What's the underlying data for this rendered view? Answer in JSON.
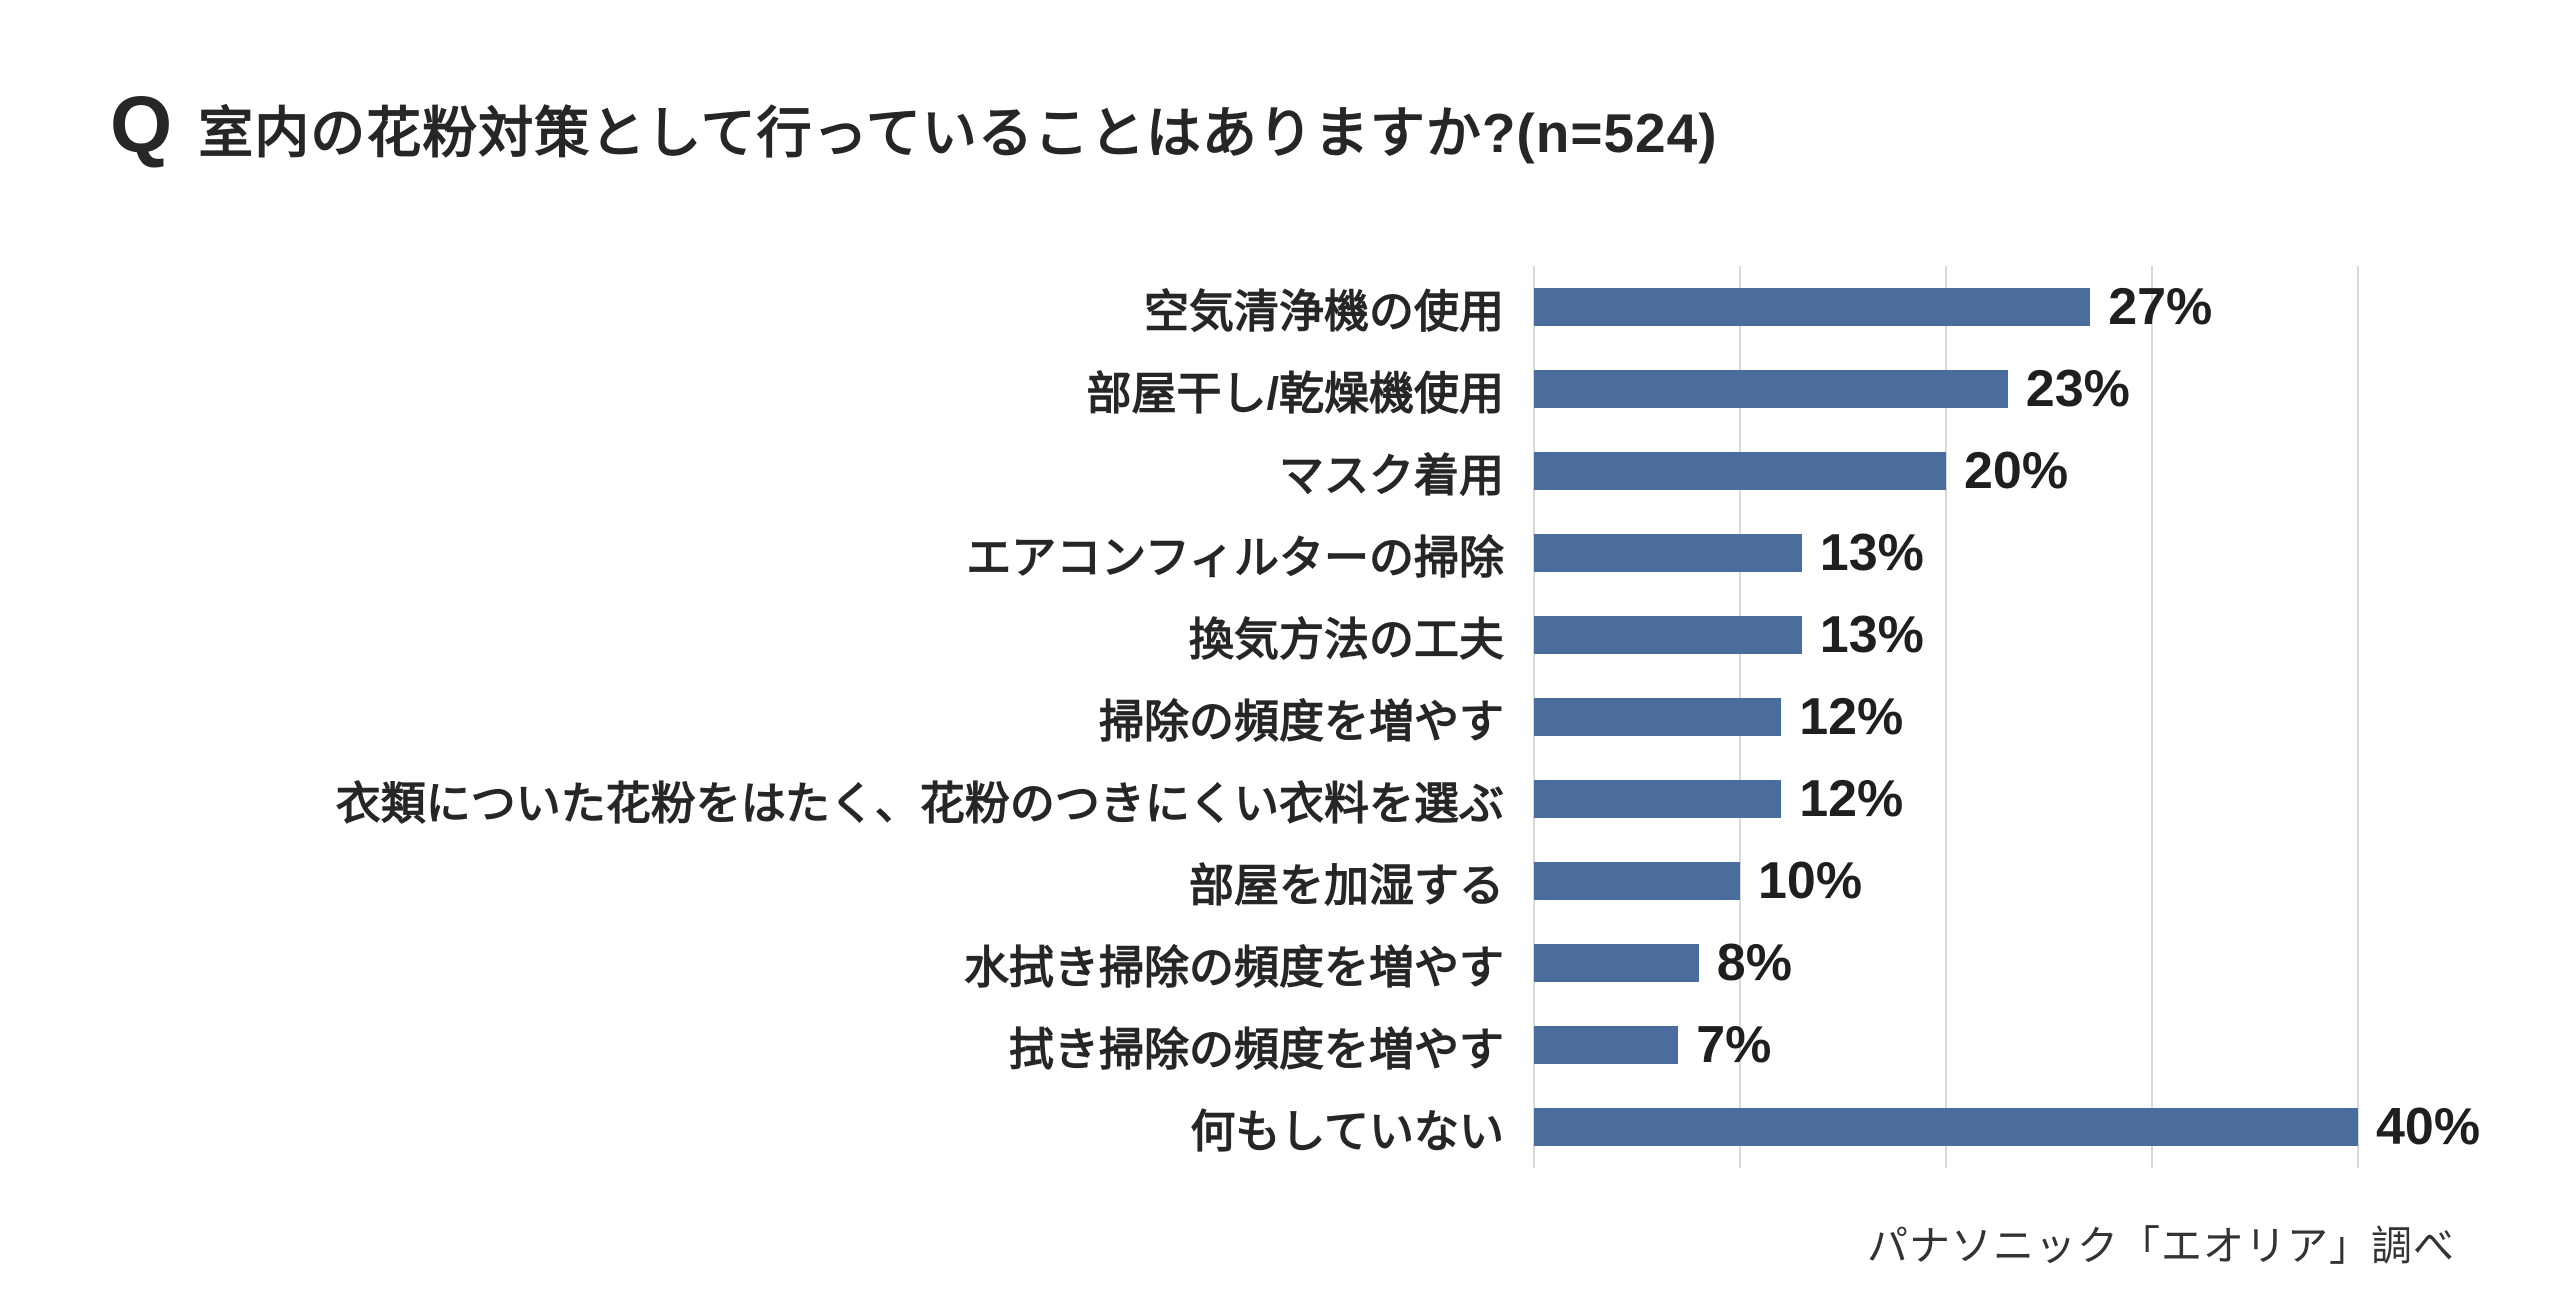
{
  "header": {
    "q_label": "Q",
    "title": "室内の花粉対策として行っていることはありますか?(n=524)"
  },
  "chart_data": {
    "type": "bar",
    "orientation": "horizontal",
    "title": "室内の花粉対策として行っていることはありますか?(n=524)",
    "sample_size": "n=524",
    "categories": [
      "空気清浄機の使用",
      "部屋干し/乾燥機使用",
      "マスク着用",
      "エアコンフィルターの掃除",
      "換気方法の工夫",
      "掃除の頻度を増やす",
      "衣類についた花粉をはたく、花粉のつきにくい衣料を選ぶ",
      "部屋を加湿する",
      "水拭き掃除の頻度を増やす",
      "拭き掃除の頻度を増やす",
      "何もしていない"
    ],
    "values": [
      27,
      23,
      20,
      13,
      13,
      12,
      12,
      10,
      8,
      7,
      40
    ],
    "value_suffix": "%",
    "xlim": [
      0,
      40
    ],
    "gridline_interval": 10,
    "grid_on": true,
    "legend": false,
    "bar_color": "#4a6d9e",
    "grid_color": "#d9d9d9"
  },
  "footer": {
    "source": "パナソニック「エオリア」調べ"
  }
}
